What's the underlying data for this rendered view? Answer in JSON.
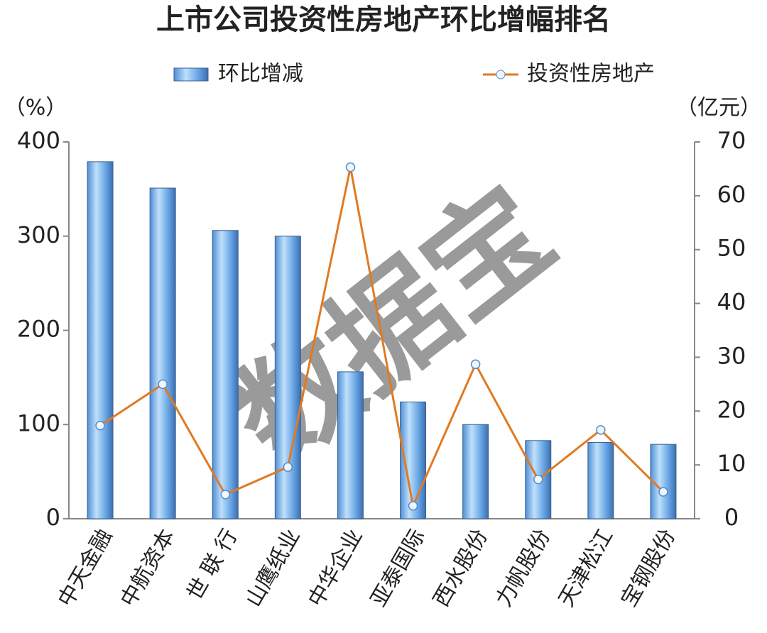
{
  "chart_data": {
    "type": "bar_line",
    "title": "上市公司投资性房地产环比增幅排名",
    "y_unit": "（%）",
    "y2_unit": "（亿元）",
    "watermark": "数据宝",
    "categories": [
      "中天金融",
      "中航资本",
      "世 联 行",
      "山鹰纸业",
      "中华企业",
      "亚泰国际",
      "西水股份",
      "力帆股份",
      "天津松江",
      "宝钢股份"
    ],
    "series": [
      {
        "name": "环比增减",
        "type": "bar",
        "color": "#7fb6ea",
        "values": [
          379,
          351,
          306,
          300,
          156,
          124,
          100,
          83,
          81,
          79
        ]
      },
      {
        "name": "投资性房地产",
        "type": "line",
        "axis": "y2",
        "color": "#e07a22",
        "values": [
          17.3,
          25.0,
          4.5,
          9.6,
          65.3,
          2.4,
          28.7,
          7.3,
          16.5,
          5.0
        ]
      }
    ],
    "ylim": [
      0,
      400
    ],
    "yticks": [
      0,
      100,
      200,
      300,
      400
    ],
    "y2lim": [
      0,
      70
    ],
    "y2ticks": [
      0,
      10,
      20,
      30,
      40,
      50,
      60,
      70
    ]
  }
}
